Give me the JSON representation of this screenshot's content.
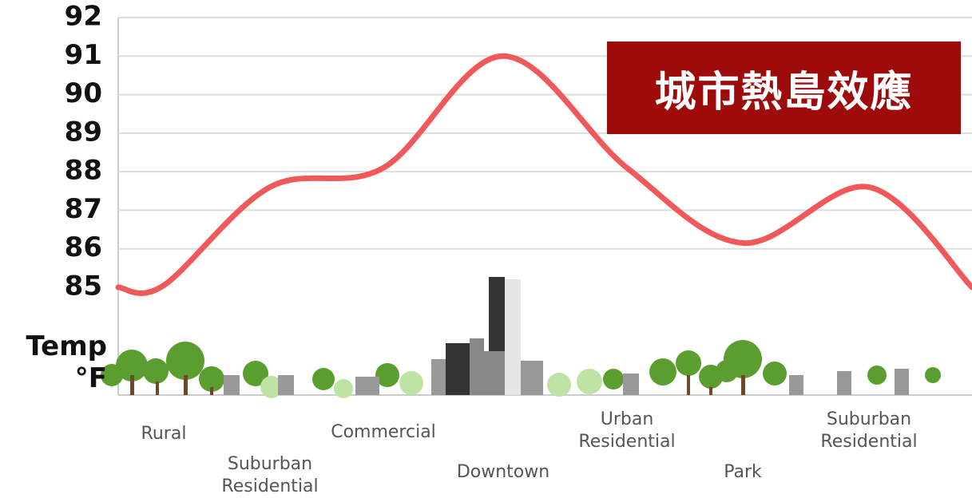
{
  "chart_data": {
    "type": "line",
    "title": "城市熱島效應",
    "y_label": "Temp\n°F",
    "categories": [
      null,
      "Rural",
      "Suburban\nResidential",
      "Commercial",
      "Downtown",
      "Urban\nResidential",
      "Park",
      "Suburban\nResidential",
      null
    ],
    "values": [
      85,
      85.05,
      87.6,
      88.1,
      91,
      88.1,
      86.15,
      87.6,
      85
    ],
    "color": "#f0585a",
    "ylim": [
      85,
      92
    ],
    "yticks": [
      85,
      86,
      87,
      88,
      89,
      90,
      91,
      92
    ],
    "grid": true
  }
}
